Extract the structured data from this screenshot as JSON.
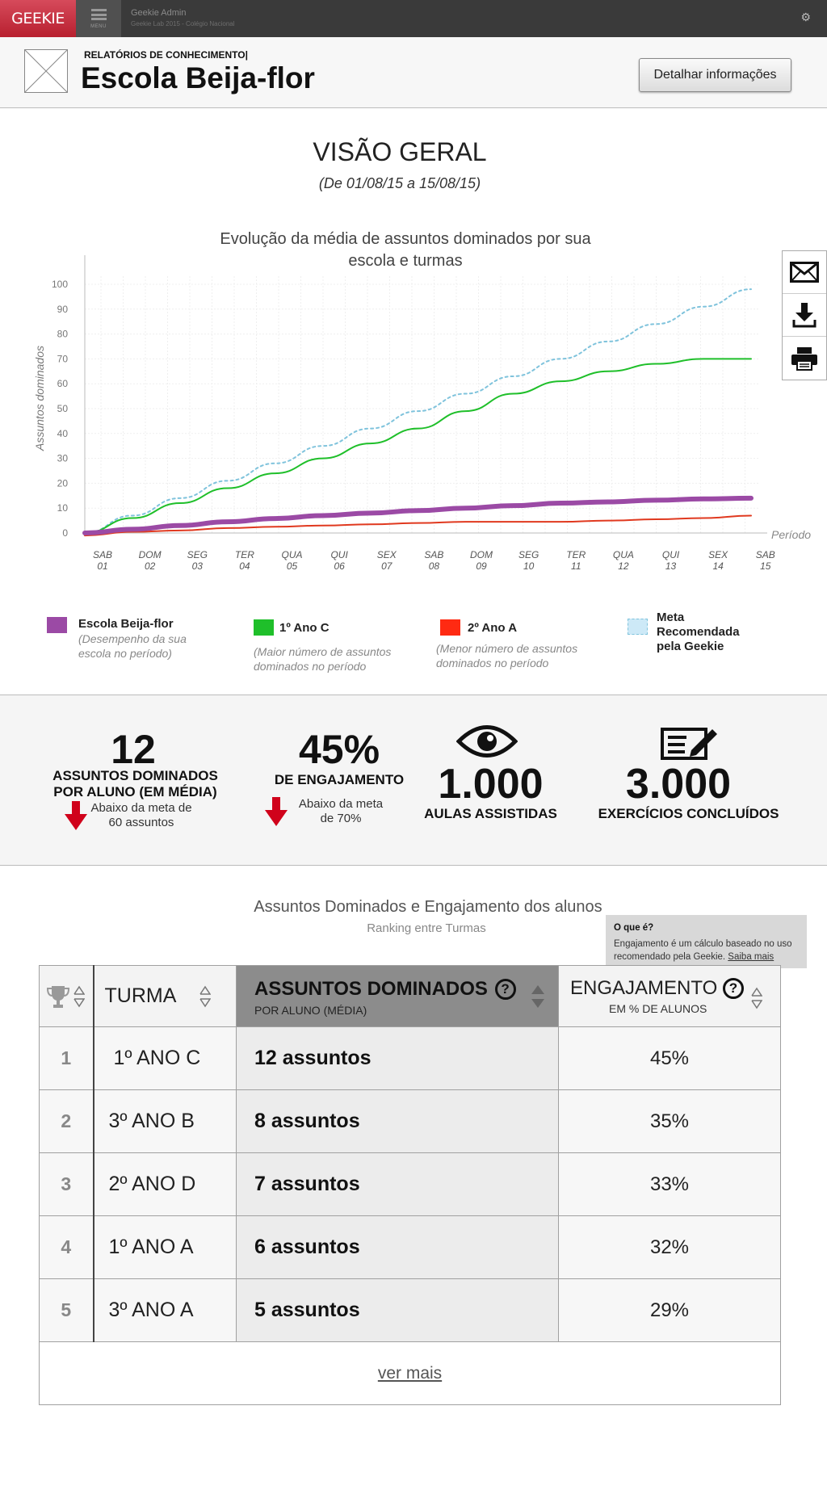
{
  "topbar": {
    "brand": "GEEKIE",
    "menu_label": "MENU",
    "admin_name": "Geekie Admin",
    "admin_sub": "Geekie Lab 2015 - Colégio Nacional",
    "gear_icon": "gear-icon"
  },
  "header": {
    "eyebrow": "RELATÓRIOS DE CONHECIMENTO|",
    "school_name": "Escola Beija-flor",
    "detail_button": "Detalhar informações"
  },
  "overview": {
    "title": "VISÃO GERAL",
    "period": "(De 01/08/15 a 15/08/15)"
  },
  "side_actions": [
    "mail-icon",
    "download-icon",
    "print-icon"
  ],
  "chart_data": {
    "type": "line",
    "title_lines": [
      "Evolução da média de assuntos dominados por sua",
      "escola e turmas"
    ],
    "ylabel": "Assuntos dominados",
    "xlabel": "Período",
    "ylim": [
      0,
      100
    ],
    "yticks": [
      0,
      10,
      20,
      30,
      40,
      50,
      60,
      70,
      80,
      90,
      100
    ],
    "x_days": [
      "SAB",
      "DOM",
      "SEG",
      "TER",
      "QUA",
      "QUI",
      "SEX",
      "SAB",
      "DOM",
      "SEG",
      "TER",
      "QUA",
      "QUI",
      "SEX",
      "SAB"
    ],
    "x_dates": [
      "01",
      "02",
      "03",
      "04",
      "05",
      "06",
      "07",
      "08",
      "09",
      "10",
      "11",
      "12",
      "13",
      "14",
      "15"
    ],
    "grid": true,
    "series": [
      {
        "name": "Escola Beija-flor",
        "color": "#9b4aa5",
        "width": 6,
        "dash": "",
        "values": [
          0,
          1.5,
          3,
          4.5,
          5.8,
          7,
          8,
          9,
          10,
          11,
          12,
          12.5,
          13.2,
          13.7,
          14
        ]
      },
      {
        "name": "1º Ano C",
        "color": "#1fbf2a",
        "width": 2,
        "dash": "",
        "values": [
          0,
          6,
          12,
          18,
          24,
          30,
          36,
          42,
          49,
          56,
          61,
          65,
          68,
          70,
          70
        ]
      },
      {
        "name": "2º Ano A",
        "color": "#e0391f",
        "width": 2,
        "dash": "",
        "values": [
          -1,
          0.5,
          1,
          2,
          2.5,
          3,
          3.5,
          4,
          4.5,
          4.5,
          4.5,
          5,
          5.5,
          6,
          7
        ]
      },
      {
        "name": "Meta Recomendada pela Geekie",
        "color": "#7fc3dc",
        "width": 2,
        "dash": "3,4",
        "values": [
          0,
          7,
          14,
          21,
          28,
          35,
          42,
          49,
          56,
          63,
          70,
          77,
          84,
          91,
          98
        ]
      }
    ]
  },
  "legend": [
    {
      "title": "Escola Beija-flor",
      "desc": "(Desempenho da sua escola no período)",
      "color": "#9b4aa5"
    },
    {
      "title": "1º Ano C",
      "desc": "(Maior número de assuntos dominados no período",
      "color": "#1fbf2a"
    },
    {
      "title": "2º Ano A",
      "desc": "(Menor número de assuntos dominados no período",
      "color": "#ff2a12"
    },
    {
      "title": "Meta Recomendada pela Geekie",
      "desc": "",
      "color": "#cde9f7"
    }
  ],
  "stats": {
    "assuntos": {
      "value": "12",
      "label": "ASSUNTOS DOMINADOS POR ALUNO (EM MÉDIA)",
      "note": "Abaixo da meta de 60 assuntos",
      "icon": "arrow-down-icon"
    },
    "engajamento": {
      "value": "45%",
      "label": "DE ENGAJAMENTO",
      "note": "Abaixo da meta de 70%",
      "icon": "arrow-down-icon"
    },
    "aulas": {
      "value": "1.000",
      "label": "AULAS ASSISTIDAS",
      "icon": "eye-icon"
    },
    "exercicios": {
      "value": "3.000",
      "label": "EXERCÍCIOS  CONCLUÍDOS",
      "icon": "exercise-icon"
    }
  },
  "ranking": {
    "title": "Assuntos Dominados e Engajamento dos alunos",
    "subtitle": "Ranking entre Turmas",
    "tooltip": {
      "title": "O que é?",
      "text": "Engajamento é um cálculo baseado no uso recomendado pela Geekie.",
      "link": "Saiba mais"
    },
    "headers": {
      "turma": "TURMA",
      "assuntos": "ASSUNTOS DOMINADOS",
      "assuntos_sub": "POR ALUNO (MÉDIA)",
      "engajamento": "ENGAJAMENTO",
      "engajamento_sub": "EM % DE ALUNOS"
    },
    "rows": [
      {
        "rank": "1",
        "turma": "1º ANO C",
        "assuntos": "12 assuntos",
        "engajamento": "45%"
      },
      {
        "rank": "2",
        "turma": "3º ANO B",
        "assuntos": "8 assuntos",
        "engajamento": "35%"
      },
      {
        "rank": "3",
        "turma": "2º ANO D",
        "assuntos": "7 assuntos",
        "engajamento": "33%"
      },
      {
        "rank": "4",
        "turma": "1º ANO A",
        "assuntos": "6 assuntos",
        "engajamento": "32%"
      },
      {
        "rank": "5",
        "turma": "3º ANO A",
        "assuntos": "5 assuntos",
        "engajamento": "29%"
      }
    ],
    "more": "ver mais"
  }
}
